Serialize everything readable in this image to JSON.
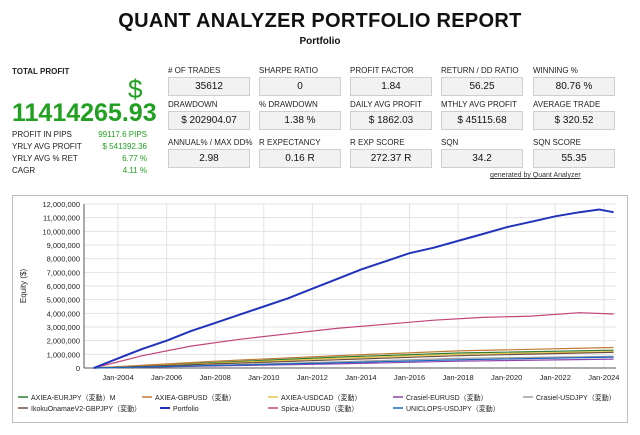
{
  "report": {
    "title": "QUANT ANALYZER PORTFOLIO REPORT",
    "subtitle": "Portfolio"
  },
  "total": {
    "label": "TOTAL PROFIT",
    "currency": "$",
    "value": "11414265.93",
    "rows": [
      {
        "label": "PROFIT IN PIPS",
        "value": "99117.6 PIPS"
      },
      {
        "label": "YRLY AVG PROFIT",
        "value": "$ 541392.36"
      },
      {
        "label": "YRLY AVG % RET",
        "value": "6.77 %"
      },
      {
        "label": "CAGR",
        "value": "4.11 %"
      }
    ]
  },
  "stats": [
    {
      "label": "# OF TRADES",
      "value": "35612"
    },
    {
      "label": "SHARPE RATIO",
      "value": "0"
    },
    {
      "label": "PROFIT FACTOR",
      "value": "1.84"
    },
    {
      "label": "RETURN / DD RATIO",
      "value": "56.25"
    },
    {
      "label": "WINNING %",
      "value": "80.76 %"
    },
    {
      "label": "DRAWDOWN",
      "value": "$ 202904.07"
    },
    {
      "label": "% DRAWDOWN",
      "value": "1.38 %"
    },
    {
      "label": "DAILY AVG PROFIT",
      "value": "$ 1862.03"
    },
    {
      "label": "MTHLY AVG PROFIT",
      "value": "$ 45115.68"
    },
    {
      "label": "AVERAGE TRADE",
      "value": "$ 320.52"
    },
    {
      "label": "ANNUAL% / MAX DD%",
      "value": "2.98"
    },
    {
      "label": "R EXPECTANCY",
      "value": "0.16 R"
    },
    {
      "label": "R EXP SCORE",
      "value": "272.37 R"
    },
    {
      "label": "SQN",
      "value": "34.2"
    },
    {
      "label": "SQN SCORE",
      "value": "55.35"
    }
  ],
  "generated_by": "generated by Quant Analyzer",
  "chart_data": {
    "type": "line",
    "ylabel": "Equity ($)",
    "xlabel": "",
    "xlim": [
      2002.6,
      2024.5
    ],
    "ylim": [
      0,
      12000000
    ],
    "x_ticks": [
      "Jan-2004",
      "Jan-2006",
      "Jan-2008",
      "Jan-2010",
      "Jan-2012",
      "Jan-2014",
      "Jan-2016",
      "Jan-2018",
      "Jan-2020",
      "Jan-2022",
      "Jan-2024"
    ],
    "x_tick_years": [
      2004,
      2006,
      2008,
      2010,
      2012,
      2014,
      2016,
      2018,
      2020,
      2022,
      2024
    ],
    "y_ticks": [
      0,
      1000000,
      2000000,
      3000000,
      4000000,
      5000000,
      6000000,
      7000000,
      8000000,
      9000000,
      10000000,
      11000000,
      12000000
    ],
    "y_tick_labels": [
      "0",
      "1,000,000",
      "2,000,000",
      "3,000,000",
      "4,000,000",
      "5,000,000",
      "6,000,000",
      "7,000,000",
      "8,000,000",
      "9,000,000",
      "10,000,000",
      "11,000,000",
      "12,000,000"
    ],
    "grid": true,
    "legend_position": "bottom",
    "series": [
      {
        "name": "AXIEA-EURJPY（変動）M",
        "color": "#2e7d32",
        "x": [
          2003,
          2008,
          2013,
          2018,
          2024.4
        ],
        "y": [
          0,
          400000,
          800000,
          1100000,
          1300000
        ]
      },
      {
        "name": "AXIEA-GBPUSD（変動）",
        "color": "#c07a35",
        "x": [
          2003,
          2008,
          2013,
          2018,
          2024.4
        ],
        "y": [
          0,
          500000,
          900000,
          1250000,
          1500000
        ]
      },
      {
        "name": "AXIEA-USDCAD（変動）",
        "color": "#e6c44a",
        "x": [
          2003,
          2008,
          2013,
          2018,
          2024.4
        ],
        "y": [
          0,
          350000,
          700000,
          1000000,
          1200000
        ]
      },
      {
        "name": "Crasiel-EURUSD（変動）",
        "color": "#8e44ad",
        "x": [
          2003,
          2008,
          2013,
          2018,
          2024.4
        ],
        "y": [
          0,
          150000,
          300000,
          500000,
          650000
        ]
      },
      {
        "name": "Crasiel-USDJPY（変動）",
        "color": "#9e9e9e",
        "x": [
          2003,
          2008,
          2013,
          2018,
          2024.4
        ],
        "y": [
          0,
          200000,
          450000,
          700000,
          850000
        ]
      },
      {
        "name": "IkokuOnamaeV2-GBPJPY（変動）",
        "color": "#6d4c41",
        "x": [
          2003,
          2008,
          2013,
          2018,
          2024.4
        ],
        "y": [
          0,
          300000,
          600000,
          900000,
          1150000
        ]
      },
      {
        "name": "Portfolio",
        "color": "#2233bb",
        "x": [
          2003,
          2004,
          2005,
          2006,
          2007,
          2008,
          2009,
          2010,
          2011,
          2012,
          2013,
          2014,
          2015,
          2016,
          2017,
          2018,
          2019,
          2020,
          2021,
          2022,
          2023,
          2023.8,
          2024.4
        ],
        "y": [
          0,
          700000,
          1400000,
          2000000,
          2700000,
          3300000,
          3900000,
          4500000,
          5100000,
          5800000,
          6500000,
          7200000,
          7800000,
          8400000,
          8800000,
          9300000,
          9800000,
          10300000,
          10700000,
          11100000,
          11400000,
          11600000,
          11400000
        ]
      },
      {
        "name": "Spica-AUDUSD（変動）",
        "color": "#c2457a",
        "x": [
          2003,
          2005,
          2007,
          2009,
          2011,
          2013,
          2015,
          2017,
          2019,
          2021,
          2023,
          2024.4
        ],
        "y": [
          0,
          900000,
          1600000,
          2100000,
          2500000,
          2900000,
          3200000,
          3500000,
          3700000,
          3800000,
          4050000,
          3950000
        ]
      },
      {
        "name": "UNICLOPS-USDJPY（変動）",
        "color": "#1565c0",
        "x": [
          2003,
          2008,
          2013,
          2018,
          2024.4
        ],
        "y": [
          0,
          180000,
          380000,
          600000,
          800000
        ]
      }
    ]
  }
}
